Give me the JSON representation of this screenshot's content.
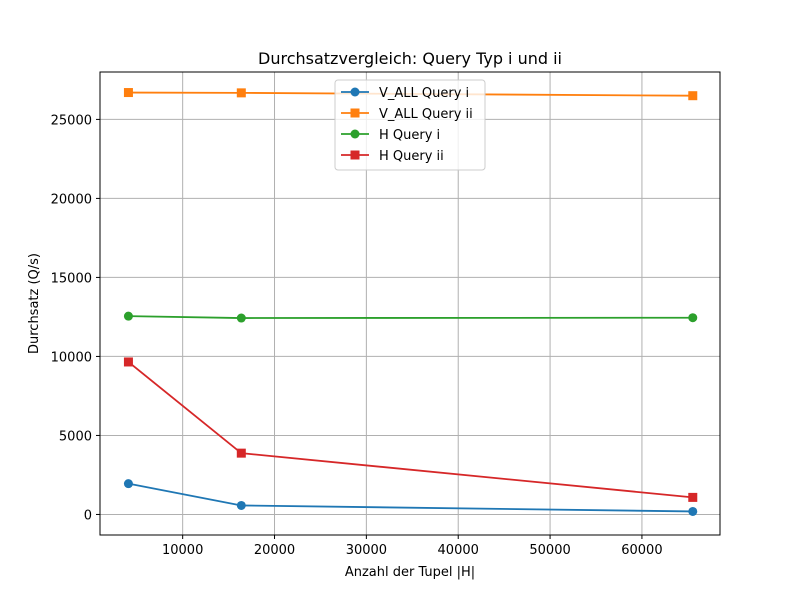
{
  "chart_data": {
    "type": "line",
    "title": "Durchsatzvergleich: Query Typ i und ii",
    "xlabel": "Anzahl der Tupel |H|",
    "ylabel": "Durchsatz (Q/s)",
    "xlim": [
      1000,
      68500
    ],
    "ylim": [
      -1300,
      28000
    ],
    "xticks": [
      10000,
      20000,
      30000,
      40000,
      50000,
      60000
    ],
    "yticks": [
      0,
      5000,
      10000,
      15000,
      20000,
      25000
    ],
    "grid": true,
    "legend_position": "top-center",
    "x": [
      4096,
      16384,
      65536
    ],
    "series": [
      {
        "name": "V_ALL Query i",
        "values": [
          1950,
          570,
          190
        ],
        "color": "#1f77b4",
        "marker": "circle"
      },
      {
        "name": "V_ALL Query ii",
        "values": [
          26700,
          26680,
          26500
        ],
        "color": "#ff7f0e",
        "marker": "square"
      },
      {
        "name": "H Query i",
        "values": [
          12550,
          12430,
          12450
        ],
        "color": "#2ca02c",
        "marker": "circle"
      },
      {
        "name": "H Query ii",
        "values": [
          9650,
          3880,
          1080
        ],
        "color": "#d62728",
        "marker": "square"
      }
    ]
  }
}
